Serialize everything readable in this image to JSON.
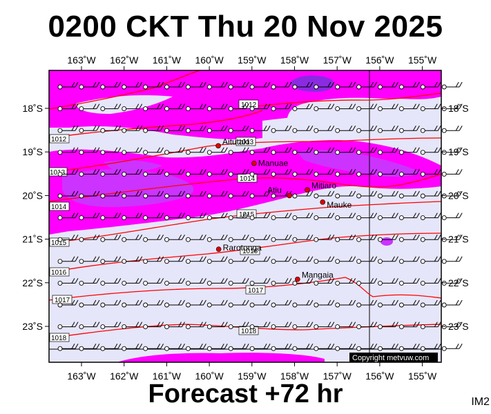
{
  "title": "0200 CKT Thu 20 Nov 2025",
  "subtitle": "Forecast +72 hr",
  "image_code": "IM2",
  "copyright": "Copyright metvuw.com",
  "colors": {
    "background_rain": "#e6e6fa",
    "rain_heavy": "#ff00ff",
    "rain_mid": "#cc33ff",
    "rain_intense": "#8a2be2",
    "isobar": "#ff0000",
    "place_marker": "#dd0000"
  },
  "longitude_labels": [
    "163˚W",
    "162˚W",
    "161˚W",
    "160˚W",
    "159˚W",
    "158˚W",
    "157˚W",
    "156˚W",
    "155˚W"
  ],
  "latitude_labels": [
    "18˚S",
    "19˚S",
    "20˚S",
    "21˚S",
    "22˚S",
    "23˚S"
  ],
  "places": [
    {
      "name": "Aitutaki",
      "lon": -159.79,
      "lat": -18.86
    },
    {
      "name": "Manuae",
      "lon": -158.95,
      "lat": -19.26
    },
    {
      "name": "Mitiaro",
      "lon": -157.7,
      "lat": -19.87
    },
    {
      "name": "Atiu",
      "lon": -158.12,
      "lat": -20.0
    },
    {
      "name": "Mauke",
      "lon": -157.34,
      "lat": -20.15
    },
    {
      "name": "Rarotonga",
      "lon": -159.78,
      "lat": -21.23
    },
    {
      "name": "Mangaia",
      "lon": -157.93,
      "lat": -21.92
    }
  ],
  "isobar_labels": [
    "1012",
    "1012",
    "1013",
    "1013",
    "1014",
    "1014",
    "1015",
    "1015",
    "1016",
    "1016",
    "1017",
    "1017",
    "1018",
    "1018"
  ],
  "wind_barbs": "light easterly to south-easterly winds (about 5-10 knots) across the whole area",
  "rain_shading": "heavy rain bands near 18˚S and 19-20˚S, clearer zone south of 21˚S"
}
